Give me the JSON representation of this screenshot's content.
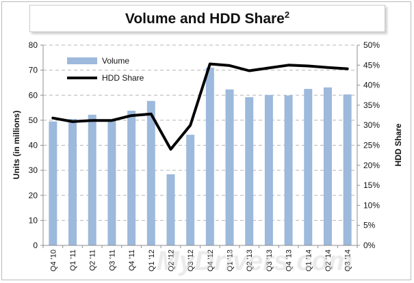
{
  "chart_data": {
    "type": "bar+line",
    "title": "Volume and HDD Share",
    "title_superscript": "2",
    "ylabel": "Units (in millions)",
    "y2label": "HDD Share",
    "ylim": [
      0,
      80
    ],
    "y2lim": [
      0,
      50
    ],
    "y_ticks": [
      "0",
      "10",
      "20",
      "30",
      "40",
      "50",
      "60",
      "70",
      "80"
    ],
    "y2_ticks": [
      "0%",
      "5%",
      "10%",
      "15%",
      "20%",
      "25%",
      "30%",
      "35%",
      "40%",
      "45%",
      "50%"
    ],
    "grid": true,
    "legend_position": "top-left",
    "categories": [
      "Q4 '10",
      "Q1 '11",
      "Q2 '11",
      "Q3 '11",
      "Q4 '11",
      "Q1 '12",
      "Q2 '12",
      "Q3 '12",
      "Q4 '12",
      "Q1 '13",
      "Q2 '13",
      "Q3 '13",
      "Q4 '13",
      "Q1 '14",
      "Q2 '14",
      "Q3 '14"
    ],
    "series": [
      {
        "name": "Volume",
        "kind": "bar",
        "axis": "left",
        "color": "#9db9dc",
        "values": [
          49.5,
          50.5,
          52.2,
          50.2,
          53.8,
          57.7,
          28.4,
          44.2,
          71.0,
          62.3,
          59.2,
          60.1,
          59.9,
          62.5,
          63.1,
          60.3
        ]
      },
      {
        "name": "HDD Share",
        "kind": "line",
        "axis": "right",
        "color": "#000000",
        "values": [
          31.8,
          30.9,
          31.2,
          31.2,
          32.4,
          32.8,
          24.0,
          30.0,
          45.3,
          44.9,
          43.6,
          44.3,
          45.0,
          44.8,
          44.4,
          44.1
        ]
      }
    ]
  },
  "watermark": "MyDrivers.com"
}
